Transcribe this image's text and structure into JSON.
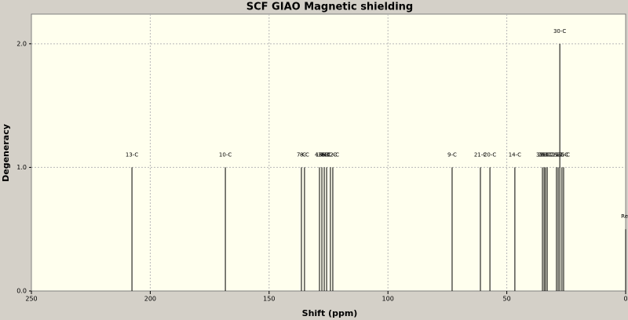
{
  "chart_data": {
    "type": "stick",
    "title": "SCF GIAO Magnetic shielding",
    "x_label": "Shift (ppm)",
    "y_label": "Degeneracy",
    "x": [
      207.7,
      168.4,
      136.4,
      135.1,
      128.8,
      127.8,
      126.8,
      125.8,
      124.2,
      123.2,
      73.0,
      61.1,
      57.1,
      46.6,
      35.0,
      34.3,
      33.7,
      33.0,
      29.1,
      28.4,
      27.7,
      26.8,
      26.1,
      0
    ],
    "values": [
      1,
      1,
      1,
      1,
      1,
      1,
      1,
      1,
      1,
      1,
      1,
      1,
      1,
      1,
      1,
      1,
      1,
      1,
      1,
      1,
      2,
      1,
      1,
      0.5
    ],
    "labels": [
      "13-C",
      "10-C",
      "7-C",
      "8-C",
      "4-C",
      "15-C",
      "16-C",
      "6-C",
      "11-C",
      "12-C",
      "9-C",
      "21-C",
      "20-C",
      "14-C",
      "32-C",
      "24-C",
      "31-C",
      "23-C",
      "28-C",
      "29-C",
      "30-C",
      "27-C",
      "26-C",
      "Re"
    ],
    "color": "#000000",
    "xlim": [
      250,
      0
    ],
    "xticks": [
      250,
      200,
      150,
      100,
      50,
      0
    ],
    "ylim": [
      0,
      2.24
    ],
    "yticks": [
      {
        "value": 0,
        "label": "0.0"
      },
      {
        "value": 1,
        "label": "1.0"
      },
      {
        "value": 2,
        "label": "2.0"
      }
    ],
    "grid": true
  }
}
